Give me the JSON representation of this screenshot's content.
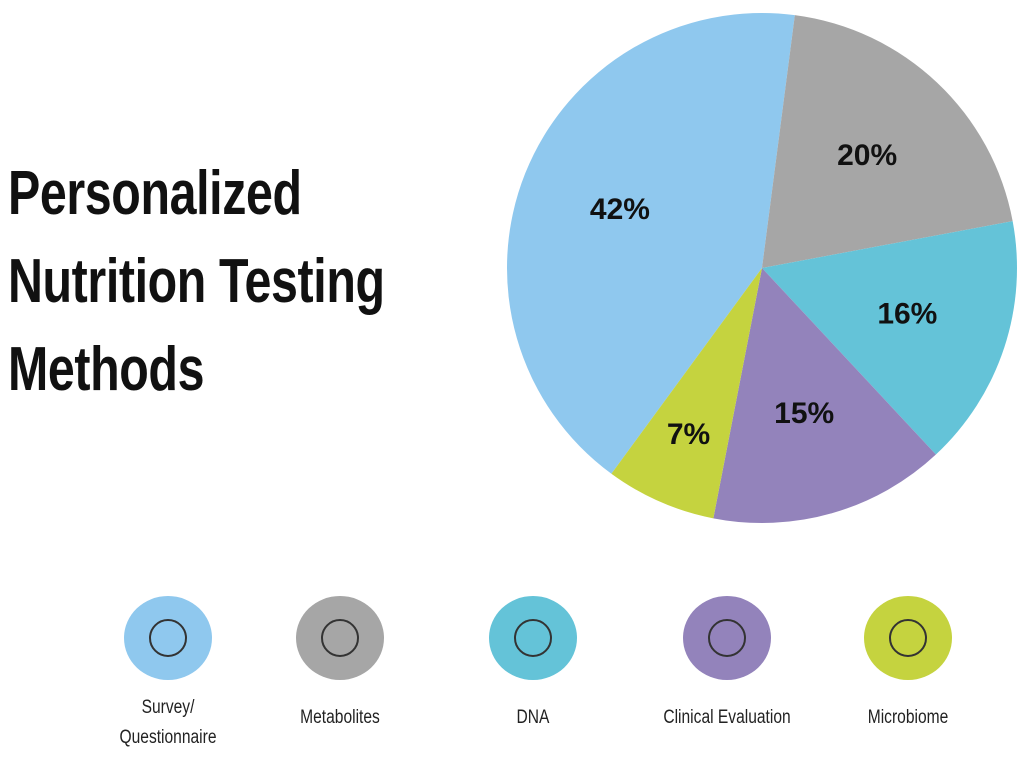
{
  "chart_data": {
    "type": "pie",
    "title": "Personalized Nutrition Testing Methods",
    "categories": [
      "Survey/ Questionnaire",
      "Metabolites",
      "DNA",
      "Clinical Evaluation",
      "Microbiome"
    ],
    "values": [
      42,
      20,
      16,
      15,
      7
    ],
    "value_labels": [
      "42%",
      "20%",
      "16%",
      "15%",
      "7%"
    ],
    "colors": [
      "#8fc8ee",
      "#a6a6a6",
      "#64c3d8",
      "#9383bb",
      "#c5d33f"
    ]
  }
}
